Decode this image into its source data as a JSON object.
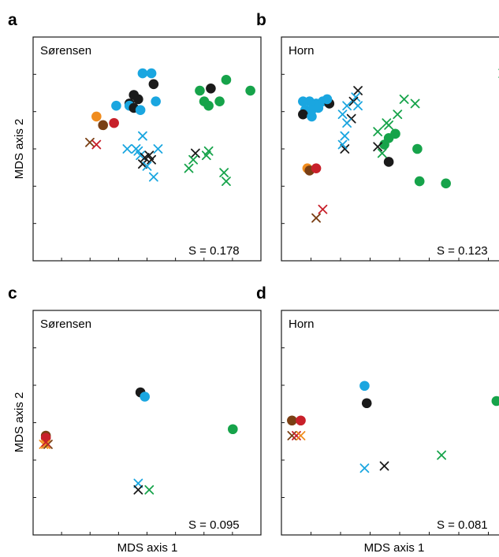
{
  "colors": {
    "black": "#1a1a1a",
    "blue": "#1aa6e0",
    "green": "#16a34a",
    "orange": "#f08c1e",
    "brown": "#7a3f14",
    "red": "#c8202a"
  },
  "xlabel": "MDS axis 1",
  "ylabel": "MDS axis 2",
  "chart_data": [
    {
      "type": "scatter",
      "panel": "a",
      "label": "Sørensen",
      "stress": "S = 0.178",
      "xlim": [
        0,
        100
      ],
      "ylim": [
        0,
        100
      ],
      "points": [
        {
          "c": "blue",
          "m": "o",
          "x": 48,
          "y": 85
        },
        {
          "c": "blue",
          "m": "o",
          "x": 52,
          "y": 85
        },
        {
          "c": "black",
          "m": "o",
          "x": 53,
          "y": 80
        },
        {
          "c": "black",
          "m": "o",
          "x": 44,
          "y": 75
        },
        {
          "c": "black",
          "m": "o",
          "x": 46,
          "y": 73
        },
        {
          "c": "black",
          "m": "o",
          "x": 42,
          "y": 71
        },
        {
          "c": "blue",
          "m": "o",
          "x": 36,
          "y": 70
        },
        {
          "c": "blue",
          "m": "o",
          "x": 42,
          "y": 70
        },
        {
          "c": "black",
          "m": "o",
          "x": 44,
          "y": 69
        },
        {
          "c": "blue",
          "m": "o",
          "x": 47,
          "y": 68
        },
        {
          "c": "blue",
          "m": "o",
          "x": 54,
          "y": 72
        },
        {
          "c": "orange",
          "m": "o",
          "x": 27,
          "y": 65
        },
        {
          "c": "brown",
          "m": "o",
          "x": 30,
          "y": 61
        },
        {
          "c": "red",
          "m": "o",
          "x": 35,
          "y": 62
        },
        {
          "c": "green",
          "m": "o",
          "x": 74,
          "y": 77
        },
        {
          "c": "black",
          "m": "o",
          "x": 79,
          "y": 78
        },
        {
          "c": "green",
          "m": "o",
          "x": 86,
          "y": 82
        },
        {
          "c": "green",
          "m": "o",
          "x": 97,
          "y": 77
        },
        {
          "c": "green",
          "m": "o",
          "x": 76,
          "y": 72
        },
        {
          "c": "green",
          "m": "o",
          "x": 83,
          "y": 72
        },
        {
          "c": "green",
          "m": "o",
          "x": 78,
          "y": 70
        },
        {
          "c": "brown",
          "m": "x",
          "x": 24,
          "y": 53
        },
        {
          "c": "red",
          "m": "x",
          "x": 27,
          "y": 52
        },
        {
          "c": "blue",
          "m": "x",
          "x": 48,
          "y": 56
        },
        {
          "c": "blue",
          "m": "x",
          "x": 41,
          "y": 50
        },
        {
          "c": "blue",
          "m": "x",
          "x": 45,
          "y": 50
        },
        {
          "c": "blue",
          "m": "x",
          "x": 46,
          "y": 49
        },
        {
          "c": "blue",
          "m": "x",
          "x": 55,
          "y": 50
        },
        {
          "c": "blue",
          "m": "x",
          "x": 47,
          "y": 47
        },
        {
          "c": "black",
          "m": "x",
          "x": 49,
          "y": 46
        },
        {
          "c": "black",
          "m": "x",
          "x": 51,
          "y": 47
        },
        {
          "c": "black",
          "m": "x",
          "x": 52,
          "y": 45
        },
        {
          "c": "black",
          "m": "x",
          "x": 48,
          "y": 43
        },
        {
          "c": "blue",
          "m": "x",
          "x": 50,
          "y": 42
        },
        {
          "c": "blue",
          "m": "x",
          "x": 53,
          "y": 37
        },
        {
          "c": "black",
          "m": "x",
          "x": 72,
          "y": 48
        },
        {
          "c": "green",
          "m": "x",
          "x": 78,
          "y": 49
        },
        {
          "c": "green",
          "m": "x",
          "x": 77,
          "y": 47
        },
        {
          "c": "green",
          "m": "x",
          "x": 71,
          "y": 45
        },
        {
          "c": "green",
          "m": "x",
          "x": 69,
          "y": 41
        },
        {
          "c": "green",
          "m": "x",
          "x": 85,
          "y": 39
        },
        {
          "c": "green",
          "m": "x",
          "x": 86,
          "y": 35
        }
      ]
    },
    {
      "type": "scatter",
      "panel": "b",
      "label": "Horn",
      "stress": "S = 0.123",
      "xlim": [
        0,
        100
      ],
      "ylim": [
        0,
        100
      ],
      "points": [
        {
          "c": "blue",
          "m": "o",
          "x": 8,
          "y": 72
        },
        {
          "c": "blue",
          "m": "o",
          "x": 11,
          "y": 72
        },
        {
          "c": "blue",
          "m": "o",
          "x": 14,
          "y": 71
        },
        {
          "c": "blue",
          "m": "o",
          "x": 17,
          "y": 72
        },
        {
          "c": "black",
          "m": "o",
          "x": 20,
          "y": 71
        },
        {
          "c": "blue",
          "m": "o",
          "x": 19,
          "y": 73
        },
        {
          "c": "blue",
          "m": "o",
          "x": 9,
          "y": 68
        },
        {
          "c": "blue",
          "m": "o",
          "x": 12,
          "y": 68
        },
        {
          "c": "blue",
          "m": "o",
          "x": 15,
          "y": 69
        },
        {
          "c": "black",
          "m": "o",
          "x": 8,
          "y": 66
        },
        {
          "c": "blue",
          "m": "o",
          "x": 12,
          "y": 65
        },
        {
          "c": "orange",
          "m": "o",
          "x": 10,
          "y": 41
        },
        {
          "c": "brown",
          "m": "o",
          "x": 11,
          "y": 40
        },
        {
          "c": "red",
          "m": "o",
          "x": 14,
          "y": 41
        },
        {
          "c": "green",
          "m": "o",
          "x": 47,
          "y": 55
        },
        {
          "c": "green",
          "m": "o",
          "x": 50,
          "y": 57
        },
        {
          "c": "green",
          "m": "o",
          "x": 45,
          "y": 52
        },
        {
          "c": "black",
          "m": "o",
          "x": 47,
          "y": 44
        },
        {
          "c": "green",
          "m": "o",
          "x": 60,
          "y": 50
        },
        {
          "c": "green",
          "m": "o",
          "x": 61,
          "y": 35
        },
        {
          "c": "green",
          "m": "o",
          "x": 73,
          "y": 34
        },
        {
          "c": "brown",
          "m": "x",
          "x": 14,
          "y": 18
        },
        {
          "c": "red",
          "m": "x",
          "x": 17,
          "y": 22
        },
        {
          "c": "black",
          "m": "x",
          "x": 33,
          "y": 77
        },
        {
          "c": "blue",
          "m": "x",
          "x": 32,
          "y": 74
        },
        {
          "c": "black",
          "m": "x",
          "x": 31,
          "y": 72
        },
        {
          "c": "blue",
          "m": "x",
          "x": 28,
          "y": 70
        },
        {
          "c": "blue",
          "m": "x",
          "x": 33,
          "y": 70
        },
        {
          "c": "blue",
          "m": "x",
          "x": 26,
          "y": 66
        },
        {
          "c": "black",
          "m": "x",
          "x": 30,
          "y": 64
        },
        {
          "c": "blue",
          "m": "x",
          "x": 28,
          "y": 62
        },
        {
          "c": "blue",
          "m": "x",
          "x": 27,
          "y": 56
        },
        {
          "c": "black",
          "m": "x",
          "x": 27,
          "y": 50
        },
        {
          "c": "blue",
          "m": "x",
          "x": 26,
          "y": 52
        },
        {
          "c": "black",
          "m": "x",
          "x": 42,
          "y": 51
        },
        {
          "c": "green",
          "m": "x",
          "x": 44,
          "y": 48
        },
        {
          "c": "green",
          "m": "x",
          "x": 47,
          "y": 61
        },
        {
          "c": "green",
          "m": "x",
          "x": 51,
          "y": 66
        },
        {
          "c": "green",
          "m": "x",
          "x": 54,
          "y": 73
        },
        {
          "c": "green",
          "m": "x",
          "x": 59,
          "y": 71
        },
        {
          "c": "green",
          "m": "x",
          "x": 46,
          "y": 62
        },
        {
          "c": "green",
          "m": "x",
          "x": 42,
          "y": 58
        },
        {
          "c": "green",
          "m": "x",
          "x": 99,
          "y": 85
        }
      ]
    },
    {
      "type": "scatter",
      "panel": "c",
      "label": "Sørensen",
      "stress": "S = 0.095",
      "xlim": [
        0,
        100
      ],
      "ylim": [
        0,
        100
      ],
      "points": [
        {
          "c": "black",
          "m": "o",
          "x": 47,
          "y": 64
        },
        {
          "c": "blue",
          "m": "o",
          "x": 49,
          "y": 62
        },
        {
          "c": "green",
          "m": "o",
          "x": 89,
          "y": 47
        },
        {
          "c": "brown",
          "m": "o",
          "x": 4,
          "y": 44
        },
        {
          "c": "red",
          "m": "o",
          "x": 4,
          "y": 43
        },
        {
          "c": "orange",
          "m": "x",
          "x": 3,
          "y": 40
        },
        {
          "c": "orange",
          "m": "x",
          "x": 4,
          "y": 40
        },
        {
          "c": "brown",
          "m": "x",
          "x": 5,
          "y": 40
        },
        {
          "c": "red",
          "m": "x",
          "x": 4,
          "y": 41
        },
        {
          "c": "blue",
          "m": "x",
          "x": 46,
          "y": 22
        },
        {
          "c": "black",
          "m": "x",
          "x": 46,
          "y": 19
        },
        {
          "c": "green",
          "m": "x",
          "x": 51,
          "y": 19
        }
      ]
    },
    {
      "type": "scatter",
      "panel": "d",
      "label": "Horn",
      "stress": "S = 0.081",
      "xlim": [
        0,
        100
      ],
      "ylim": [
        0,
        100
      ],
      "points": [
        {
          "c": "blue",
          "m": "o",
          "x": 36,
          "y": 67
        },
        {
          "c": "black",
          "m": "o",
          "x": 37,
          "y": 59
        },
        {
          "c": "green",
          "m": "o",
          "x": 96,
          "y": 60
        },
        {
          "c": "brown",
          "m": "o",
          "x": 3,
          "y": 51
        },
        {
          "c": "red",
          "m": "o",
          "x": 7,
          "y": 51
        },
        {
          "c": "brown",
          "m": "x",
          "x": 3,
          "y": 44
        },
        {
          "c": "red",
          "m": "x",
          "x": 5,
          "y": 44
        },
        {
          "c": "orange",
          "m": "x",
          "x": 7,
          "y": 44
        },
        {
          "c": "blue",
          "m": "x",
          "x": 36,
          "y": 29
        },
        {
          "c": "black",
          "m": "x",
          "x": 45,
          "y": 30
        },
        {
          "c": "green",
          "m": "x",
          "x": 71,
          "y": 35
        }
      ]
    }
  ]
}
